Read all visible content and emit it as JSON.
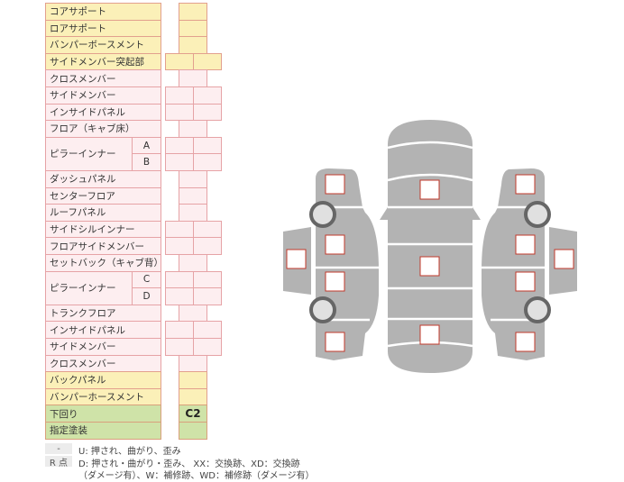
{
  "table": {
    "rows": [
      {
        "label": "コアサポート",
        "color": "yellow",
        "cells": 1
      },
      {
        "label": "ロアサポート",
        "color": "yellow",
        "cells": 1
      },
      {
        "label": "バンパーボースメント",
        "color": "yellow",
        "cells": 1
      },
      {
        "label": "サイドメンバー突起部",
        "color": "yellow",
        "cells": 2
      },
      {
        "label": "クロスメンバー",
        "color": "pink",
        "cells": 1
      },
      {
        "label": "サイドメンバー",
        "color": "pink",
        "cells": 2
      },
      {
        "label": "インサイドパネル",
        "color": "pink",
        "cells": 2
      },
      {
        "label": "フロア（キャブ床）",
        "color": "pink",
        "cells": 1
      },
      {
        "label": "ピラーインナー",
        "color": "pink",
        "cells": 2,
        "subs": [
          "A",
          "B"
        ]
      },
      {
        "label": "ダッシュパネル",
        "color": "pink",
        "cells": 1
      },
      {
        "label": "センターフロア",
        "color": "pink",
        "cells": 1
      },
      {
        "label": "ルーフパネル",
        "color": "pink",
        "cells": 1
      },
      {
        "label": "サイドシルインナー",
        "color": "pink",
        "cells": 2
      },
      {
        "label": "フロアサイドメンバー",
        "color": "pink",
        "cells": 2
      },
      {
        "label": "セットバック（キャブ背）",
        "color": "pink",
        "cells": 1
      },
      {
        "label": "ピラーインナー",
        "color": "pink",
        "cells": 2,
        "subs": [
          "C",
          "D"
        ]
      },
      {
        "label": "トランクフロア",
        "color": "pink",
        "cells": 1
      },
      {
        "label": "インサイドパネル",
        "color": "pink",
        "cells": 2
      },
      {
        "label": "サイドメンバー",
        "color": "pink",
        "cells": 2
      },
      {
        "label": "クロスメンバー",
        "color": "pink",
        "cells": 1
      },
      {
        "label": "バックパネル",
        "color": "yellow",
        "cells": 1
      },
      {
        "label": "バンパーホースメント",
        "color": "yellow",
        "cells": 1
      },
      {
        "label": "下回り",
        "color": "green",
        "cells": 1,
        "value": "C2"
      },
      {
        "label": "指定塗装",
        "color": "green",
        "cells": 1
      }
    ]
  },
  "legend": {
    "items": [
      {
        "key": "-",
        "lines": [
          "U: 押され、曲がり、歪み"
        ]
      },
      {
        "key": "R 点",
        "lines": [
          "D: 押され・曲がり・歪み、 XX：交換跡、XD：交換跡",
          "（ダメージ有）、W：補修跡、WD：補修跡（ダメージ有）"
        ]
      }
    ]
  },
  "colors": {
    "yellow": "#fbf0b8",
    "pink": "#fdeef0",
    "green": "#cfe3a8",
    "car_body": "#b3b3b3",
    "marker_border": "#c0392b",
    "wheel": "#666666"
  }
}
